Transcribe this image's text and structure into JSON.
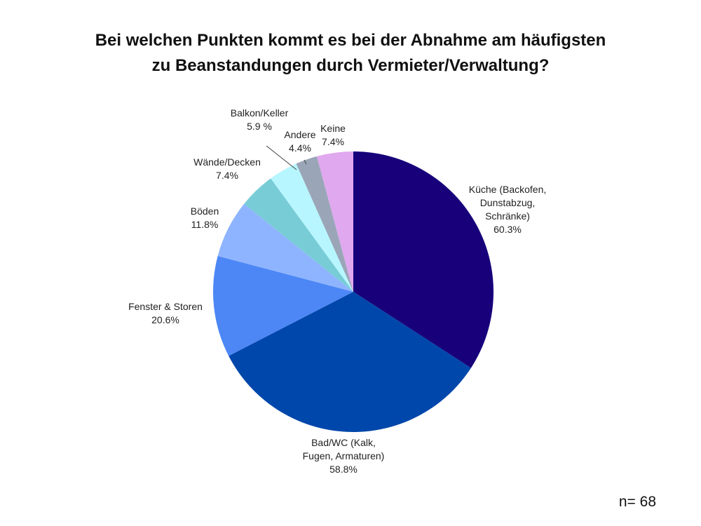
{
  "chart_data": {
    "type": "pie",
    "title_lines": [
      "Bei welchen Punkten kommt es bei der Abnahme am häufigsten",
      "zu Beanstandungen durch Vermieter/Verwaltung?"
    ],
    "slices": [
      {
        "name_lines": [
          "Küche (Backofen,",
          "Dunstabzug,",
          "Schränke)"
        ],
        "label": "60.3%",
        "value": 60.3,
        "color": "#17007a"
      },
      {
        "name_lines": [
          "Bad/WC (Kalk,",
          "Fugen, Armaturen)"
        ],
        "label": "58.8%",
        "value": 58.8,
        "color": "#0047ab"
      },
      {
        "name_lines": [
          "Fenster & Storen"
        ],
        "label": "20.6%",
        "value": 20.6,
        "color": "#4c87f5"
      },
      {
        "name_lines": [
          "Böden"
        ],
        "label": "11.8%",
        "value": 11.8,
        "color": "#8fb4ff"
      },
      {
        "name_lines": [
          "Wände/Decken"
        ],
        "label": "7.4%",
        "value": 7.4,
        "color": "#78ccd6"
      },
      {
        "name_lines": [
          "Balkon/Keller"
        ],
        "label": "5.9 %",
        "value": 5.9,
        "color": "#b8f6ff"
      },
      {
        "name_lines": [
          "Andere"
        ],
        "label": "4.4%",
        "value": 4.4,
        "color": "#9aa6b8"
      },
      {
        "name_lines": [
          "Keine"
        ],
        "label": "7.4%",
        "value": 7.4,
        "color": "#e0a8ee"
      }
    ]
  },
  "sample_size": "n= 68"
}
